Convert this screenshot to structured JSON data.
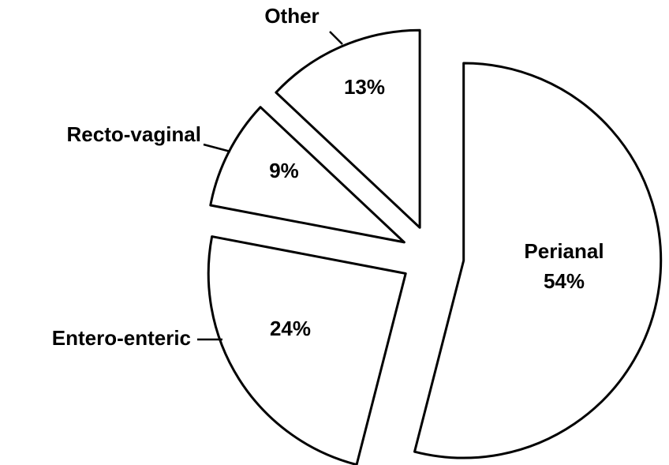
{
  "chart_data": {
    "type": "pie",
    "categories": [
      "Perianal",
      "Entero-enteric",
      "Recto-vaginal",
      "Other"
    ],
    "values": [
      54,
      24,
      9,
      13
    ],
    "value_labels": [
      "54%",
      "24%",
      "9%",
      "13%"
    ],
    "color": "#ffffff"
  }
}
